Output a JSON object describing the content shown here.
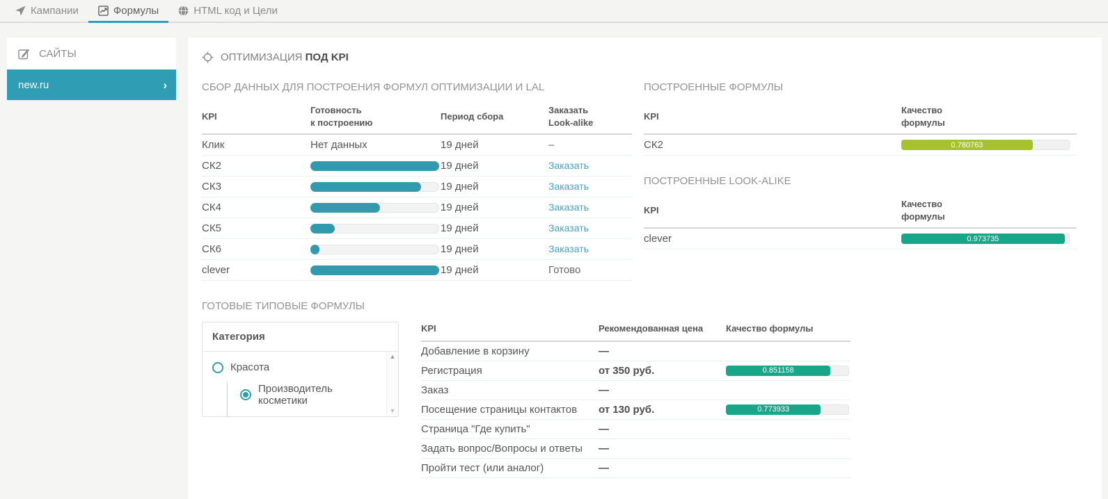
{
  "nav": {
    "tabs": [
      {
        "name": "tab-campaigns",
        "label": "Кампании",
        "icon": "send-icon",
        "active": false
      },
      {
        "name": "tab-formulas",
        "label": "Формулы",
        "icon": "chart-icon",
        "active": true
      },
      {
        "name": "tab-html-goals",
        "label": "HTML код и Цели",
        "icon": "globe-icon",
        "active": false
      }
    ]
  },
  "sidebar": {
    "title": "САЙТЫ",
    "items": [
      {
        "label": "new.ru",
        "selected": true,
        "chevron": "›"
      }
    ]
  },
  "main": {
    "title_regular": "ОПТИМИЗАЦИЯ",
    "title_bold": "ПОД KPI",
    "collection": {
      "title": "СБОР ДАННЫХ ДЛЯ ПОСТРОЕНИЯ ФОРМУЛ ОПТИМИЗАЦИИ И LAL",
      "columns": [
        "KPI",
        "Готовность\nк построению",
        "Период сбора",
        "Заказать\nLook-alike"
      ],
      "rows": [
        {
          "kpi": "Клик",
          "readiness": {
            "type": "text",
            "label": "Нет данных"
          },
          "period": "19 дней",
          "order": {
            "type": "dash",
            "label": "–"
          }
        },
        {
          "kpi": "СК2",
          "readiness": {
            "type": "bar",
            "pct": 100
          },
          "period": "19 дней",
          "order": {
            "type": "link",
            "label": "Заказать"
          }
        },
        {
          "kpi": "СК3",
          "readiness": {
            "type": "bar",
            "pct": 86
          },
          "period": "19 дней",
          "order": {
            "type": "link",
            "label": "Заказать"
          }
        },
        {
          "kpi": "СК4",
          "readiness": {
            "type": "bar",
            "pct": 54
          },
          "period": "19 дней",
          "order": {
            "type": "link",
            "label": "Заказать"
          }
        },
        {
          "kpi": "СК5",
          "readiness": {
            "type": "bar",
            "pct": 19
          },
          "period": "19 дней",
          "order": {
            "type": "link",
            "label": "Заказать"
          }
        },
        {
          "kpi": "СК6",
          "readiness": {
            "type": "bar",
            "pct": 7
          },
          "period": "19 дней",
          "order": {
            "type": "link",
            "label": "Заказать"
          }
        },
        {
          "kpi": "clever",
          "readiness": {
            "type": "bar",
            "pct": 100
          },
          "period": "19 дней",
          "order": {
            "type": "text",
            "label": "Готово"
          }
        }
      ]
    },
    "built_formulas": {
      "title": "ПОСТРОЕННЫЕ ФОРМУЛЫ",
      "col_kpi": "KPI",
      "col_quality": "Качество\nформулы",
      "rows": [
        {
          "kpi": "СК2",
          "quality": "0.780763",
          "pct": 78,
          "color": "#a6c32b"
        }
      ]
    },
    "built_lal": {
      "title": "ПОСТРОЕННЫЕ LOOK-ALIKE",
      "col_kpi": "KPI",
      "col_quality": "Качество\nформулы",
      "rows": [
        {
          "kpi": "clever",
          "quality": "0.973735",
          "pct": 97,
          "color": "#18a689"
        }
      ]
    },
    "ready_formulas": {
      "title": "ГОТОВЫЕ ТИПОВЫЕ ФОРМУЛЫ",
      "category_box": {
        "header": "Категория",
        "tree": [
          {
            "label": "Красота",
            "selected": false,
            "children": [
              {
                "label": "Производитель косметики",
                "selected": true
              }
            ]
          }
        ],
        "scrollbar": {
          "up_arrow": "▲",
          "down_arrow": "▼"
        }
      },
      "table": {
        "columns": [
          "KPI",
          "Рекомендованная цена",
          "Качество формулы"
        ],
        "rows": [
          {
            "kpi": "Добавление в корзину",
            "price": "—",
            "quality": null
          },
          {
            "kpi": "Регистрация",
            "price": "от 350 руб.",
            "quality": "0.851158",
            "pct": 85,
            "color": "#18a689"
          },
          {
            "kpi": "Заказ",
            "price": "—",
            "quality": null
          },
          {
            "kpi": "Посещение страницы контактов",
            "price": "от 130 руб.",
            "quality": "0.773933",
            "pct": 77,
            "color": "#18a689"
          },
          {
            "kpi": "Страница \"Где купить\"",
            "price": "—",
            "quality": null
          },
          {
            "kpi": "Задать вопрос/Вопросы и ответы",
            "price": "—",
            "quality": null
          },
          {
            "kpi": "Пройти тест (или аналог)",
            "price": "—",
            "quality": null
          }
        ]
      }
    }
  },
  "colors": {
    "accent_teal": "#2f9db3",
    "progress_teal": "#3399ad",
    "quality_green": "#18a689",
    "quality_lime": "#a6c32b",
    "link_blue": "#44a2c1"
  }
}
